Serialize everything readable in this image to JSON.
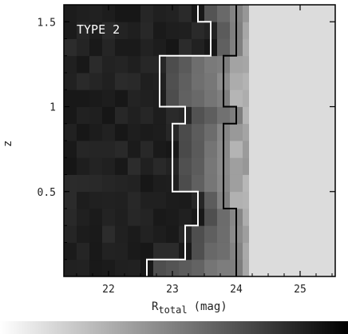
{
  "chart_data": {
    "type": "heatmap",
    "title": "",
    "annotation": "TYPE 2",
    "xlabel": "R",
    "xlabel_subscript": "total",
    "xlabel_unit": "(mag)",
    "ylabel": "z",
    "xlim": [
      21.3,
      25.55
    ],
    "ylim": [
      0.0,
      1.6
    ],
    "x_ticks": [
      22,
      23,
      24,
      25
    ],
    "x_tick_labels": [
      "22",
      "23",
      "24",
      "25"
    ],
    "y_ticks": [
      0.5,
      1.0,
      1.5
    ],
    "y_tick_labels": [
      "0.5",
      "1",
      "1.5"
    ],
    "cell_width_mag": 0.2,
    "cell_height_z": 0.1,
    "bright_region_start_mag": 24.2,
    "bright_region_gray": 220,
    "colorbar": {
      "orientation": "horizontal",
      "from": "white",
      "to": "black"
    },
    "white_boundary_right_edge_mag": [
      22.6,
      23.2,
      23.2,
      23.4,
      23.4,
      23.0,
      23.0,
      23.0,
      23.0,
      23.2,
      22.8,
      22.8,
      22.8,
      23.6,
      23.6,
      23.4
    ],
    "black_boundary_right_edge_mag": [
      24.0,
      24.0,
      24.0,
      24.0,
      23.8,
      23.8,
      23.8,
      23.8,
      23.8,
      24.0,
      23.8,
      23.8,
      23.8,
      24.0,
      24.0,
      24.0
    ]
  }
}
